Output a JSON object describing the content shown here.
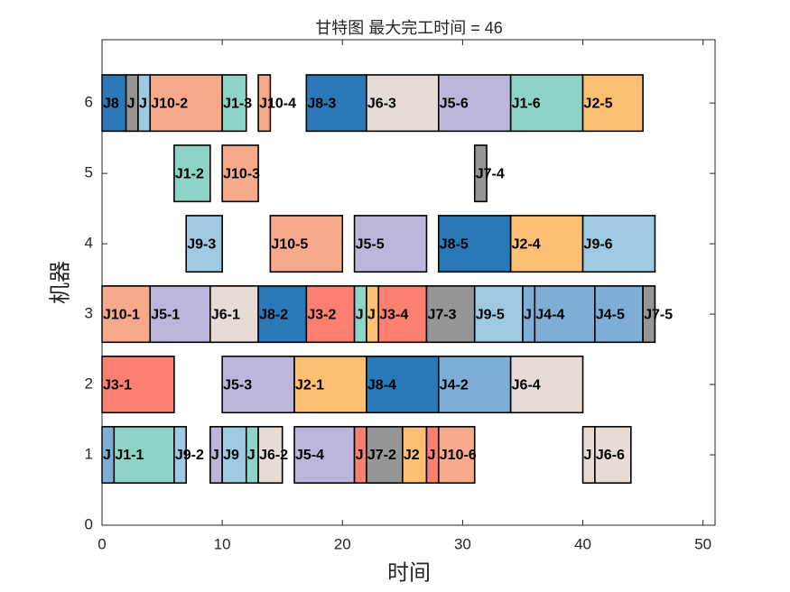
{
  "chart_data": {
    "type": "gantt",
    "title": "甘特图 最大完工时间 = 46",
    "x_label": "时间",
    "y_label": "机器",
    "xlim": [
      0,
      51
    ],
    "xticks": [
      0,
      10,
      20,
      30,
      40,
      50
    ],
    "ylim": [
      0,
      6.9
    ],
    "yticks": [
      0,
      1,
      2,
      3,
      4,
      5,
      6
    ],
    "tasks": [
      {
        "machine": 6,
        "start": 0,
        "end": 2,
        "label": "J8",
        "color": "#2b78b8"
      },
      {
        "machine": 6,
        "start": 2,
        "end": 3,
        "label": "J",
        "color": "#969696"
      },
      {
        "machine": 6,
        "start": 3,
        "end": 4,
        "label": "J",
        "color": "#9ecae1"
      },
      {
        "machine": 6,
        "start": 4,
        "end": 10,
        "label": "J10-2",
        "color": "#f7aa8b"
      },
      {
        "machine": 6,
        "start": 10,
        "end": 12,
        "label": "J1-3",
        "color": "#8dd3c7"
      },
      {
        "machine": 6,
        "start": 13,
        "end": 14,
        "label": "J10-4",
        "color": "#f7aa8b"
      },
      {
        "machine": 6,
        "start": 17,
        "end": 22,
        "label": "J8-3",
        "color": "#2b78b8"
      },
      {
        "machine": 6,
        "start": 22,
        "end": 28,
        "label": "J6-3",
        "color": "#e7dcd5"
      },
      {
        "machine": 6,
        "start": 28,
        "end": 34,
        "label": "J5-6",
        "color": "#bcb6dc"
      },
      {
        "machine": 6,
        "start": 34,
        "end": 40,
        "label": "J1-6",
        "color": "#8dd3c7"
      },
      {
        "machine": 6,
        "start": 40,
        "end": 45,
        "label": "J2-5",
        "color": "#fdbf73"
      },
      {
        "machine": 5,
        "start": 6,
        "end": 9,
        "label": "J1-2",
        "color": "#8dd3c7"
      },
      {
        "machine": 5,
        "start": 10,
        "end": 13,
        "label": "J10-3",
        "color": "#f7aa8b"
      },
      {
        "machine": 5,
        "start": 31,
        "end": 32,
        "label": "J7-4",
        "color": "#969696"
      },
      {
        "machine": 4,
        "start": 7,
        "end": 10,
        "label": "J9-3",
        "color": "#9ecae1"
      },
      {
        "machine": 4,
        "start": 14,
        "end": 20,
        "label": "J10-5",
        "color": "#f7aa8b"
      },
      {
        "machine": 4,
        "start": 21,
        "end": 27,
        "label": "J5-5",
        "color": "#bcb6dc"
      },
      {
        "machine": 4,
        "start": 28,
        "end": 34,
        "label": "J8-5",
        "color": "#2b78b8"
      },
      {
        "machine": 4,
        "start": 34,
        "end": 40,
        "label": "J2-4",
        "color": "#fdbf73"
      },
      {
        "machine": 4,
        "start": 40,
        "end": 46,
        "label": "J9-6",
        "color": "#9ecae1"
      },
      {
        "machine": 3,
        "start": 0,
        "end": 4,
        "label": "J10-1",
        "color": "#f7aa8b"
      },
      {
        "machine": 3,
        "start": 4,
        "end": 9,
        "label": "J5-1",
        "color": "#bcb6dc"
      },
      {
        "machine": 3,
        "start": 9,
        "end": 13,
        "label": "J6-1",
        "color": "#e7dcd5"
      },
      {
        "machine": 3,
        "start": 13,
        "end": 17,
        "label": "J8-2",
        "color": "#2b78b8"
      },
      {
        "machine": 3,
        "start": 17,
        "end": 21,
        "label": "J3-2",
        "color": "#fb8072"
      },
      {
        "machine": 3,
        "start": 21,
        "end": 22,
        "label": "J",
        "color": "#8dd3c7"
      },
      {
        "machine": 3,
        "start": 22,
        "end": 23,
        "label": "J",
        "color": "#fdbf73"
      },
      {
        "machine": 3,
        "start": 23,
        "end": 27,
        "label": "J3-4",
        "color": "#fb8072"
      },
      {
        "machine": 3,
        "start": 27,
        "end": 31,
        "label": "J7-3",
        "color": "#969696"
      },
      {
        "machine": 3,
        "start": 31,
        "end": 35,
        "label": "J9-5",
        "color": "#9ecae1"
      },
      {
        "machine": 3,
        "start": 35,
        "end": 36,
        "label": "J",
        "color": "#7eaed6"
      },
      {
        "machine": 3,
        "start": 36,
        "end": 41,
        "label": "J4-4",
        "color": "#7eaed6"
      },
      {
        "machine": 3,
        "start": 41,
        "end": 45,
        "label": "J4-5",
        "color": "#7eaed6"
      },
      {
        "machine": 3,
        "start": 45,
        "end": 46,
        "label": "J7-5",
        "color": "#969696"
      },
      {
        "machine": 2,
        "start": 0,
        "end": 6,
        "label": "J3-1",
        "color": "#fb8072"
      },
      {
        "machine": 2,
        "start": 10,
        "end": 16,
        "label": "J5-3",
        "color": "#bcb6dc"
      },
      {
        "machine": 2,
        "start": 16,
        "end": 22,
        "label": "J2-1",
        "color": "#fdbf73"
      },
      {
        "machine": 2,
        "start": 22,
        "end": 28,
        "label": "J8-4",
        "color": "#2b78b8"
      },
      {
        "machine": 2,
        "start": 28,
        "end": 34,
        "label": "J4-2",
        "color": "#7eaed6"
      },
      {
        "machine": 2,
        "start": 34,
        "end": 40,
        "label": "J6-4",
        "color": "#e7dcd5"
      },
      {
        "machine": 1,
        "start": 0,
        "end": 1,
        "label": "J",
        "color": "#7eaed6"
      },
      {
        "machine": 1,
        "start": 1,
        "end": 6,
        "label": "J1-1",
        "color": "#8dd3c7"
      },
      {
        "machine": 1,
        "start": 6,
        "end": 7,
        "label": "J9-2",
        "color": "#9ecae1"
      },
      {
        "machine": 1,
        "start": 9,
        "end": 10,
        "label": "J",
        "color": "#bcb6dc"
      },
      {
        "machine": 1,
        "start": 10,
        "end": 12,
        "label": "J9",
        "color": "#9ecae1"
      },
      {
        "machine": 1,
        "start": 12,
        "end": 13,
        "label": "J",
        "color": "#8dd3c7"
      },
      {
        "machine": 1,
        "start": 13,
        "end": 15,
        "label": "J6-2",
        "color": "#e7dcd5"
      },
      {
        "machine": 1,
        "start": 16,
        "end": 21,
        "label": "J5-4",
        "color": "#bcb6dc"
      },
      {
        "machine": 1,
        "start": 21,
        "end": 22,
        "label": "J",
        "color": "#fb8072"
      },
      {
        "machine": 1,
        "start": 22,
        "end": 25,
        "label": "J7-2",
        "color": "#969696"
      },
      {
        "machine": 1,
        "start": 25,
        "end": 27,
        "label": "J2",
        "color": "#fdbf73"
      },
      {
        "machine": 1,
        "start": 27,
        "end": 28,
        "label": "J",
        "color": "#fb8072"
      },
      {
        "machine": 1,
        "start": 28,
        "end": 31,
        "label": "J10-6",
        "color": "#f7aa8b"
      },
      {
        "machine": 1,
        "start": 40,
        "end": 41,
        "label": "J",
        "color": "#e7dcd5"
      },
      {
        "machine": 1,
        "start": 41,
        "end": 44,
        "label": "J6-6",
        "color": "#e7dcd5"
      }
    ]
  }
}
